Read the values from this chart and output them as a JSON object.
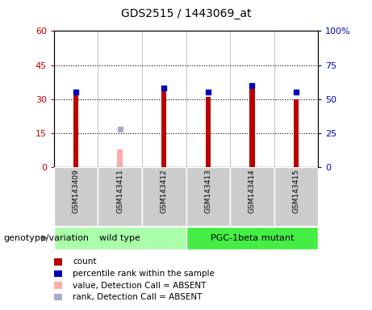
{
  "title": "GDS2515 / 1443069_at",
  "samples": [
    "GSM143409",
    "GSM143411",
    "GSM143412",
    "GSM143413",
    "GSM143414",
    "GSM143415"
  ],
  "count_values": [
    32,
    null,
    35,
    31,
    35,
    30
  ],
  "count_absent_values": [
    null,
    8,
    null,
    null,
    null,
    null
  ],
  "rank_values": [
    55,
    null,
    58,
    55,
    60,
    55
  ],
  "rank_absent_values": [
    null,
    28,
    null,
    null,
    null,
    null
  ],
  "count_color": "#bb0000",
  "count_absent_color": "#ffaaaa",
  "rank_color": "#0000bb",
  "rank_absent_color": "#aaaacc",
  "ylim_left": [
    0,
    60
  ],
  "ylim_right": [
    0,
    100
  ],
  "yticks_left": [
    0,
    15,
    30,
    45,
    60
  ],
  "yticks_right": [
    0,
    25,
    50,
    75,
    100
  ],
  "ytick_labels_left": [
    "0",
    "15",
    "30",
    "45",
    "60"
  ],
  "ytick_labels_right": [
    "0",
    "25",
    "50",
    "75",
    "100%"
  ],
  "hlines": [
    15,
    30,
    45
  ],
  "groups": [
    {
      "label": "wild type",
      "samples_idx": [
        0,
        1,
        2
      ],
      "color": "#aaffaa"
    },
    {
      "label": "PGC-1beta mutant",
      "samples_idx": [
        3,
        4,
        5
      ],
      "color": "#44ee44"
    }
  ],
  "group_label_prefix": "genotype/variation",
  "legend_items": [
    {
      "label": "count",
      "color": "#bb0000"
    },
    {
      "label": "percentile rank within the sample",
      "color": "#0000bb"
    },
    {
      "label": "value, Detection Call = ABSENT",
      "color": "#ffaaaa"
    },
    {
      "label": "rank, Detection Call = ABSENT",
      "color": "#aaaacc"
    }
  ],
  "bar_width": 0.12,
  "marker_size": 5,
  "background_color": "#ffffff",
  "plot_bg_color": "#ffffff",
  "sample_label_bg": "#cccccc",
  "col_sep_color": "#aaaaaa"
}
